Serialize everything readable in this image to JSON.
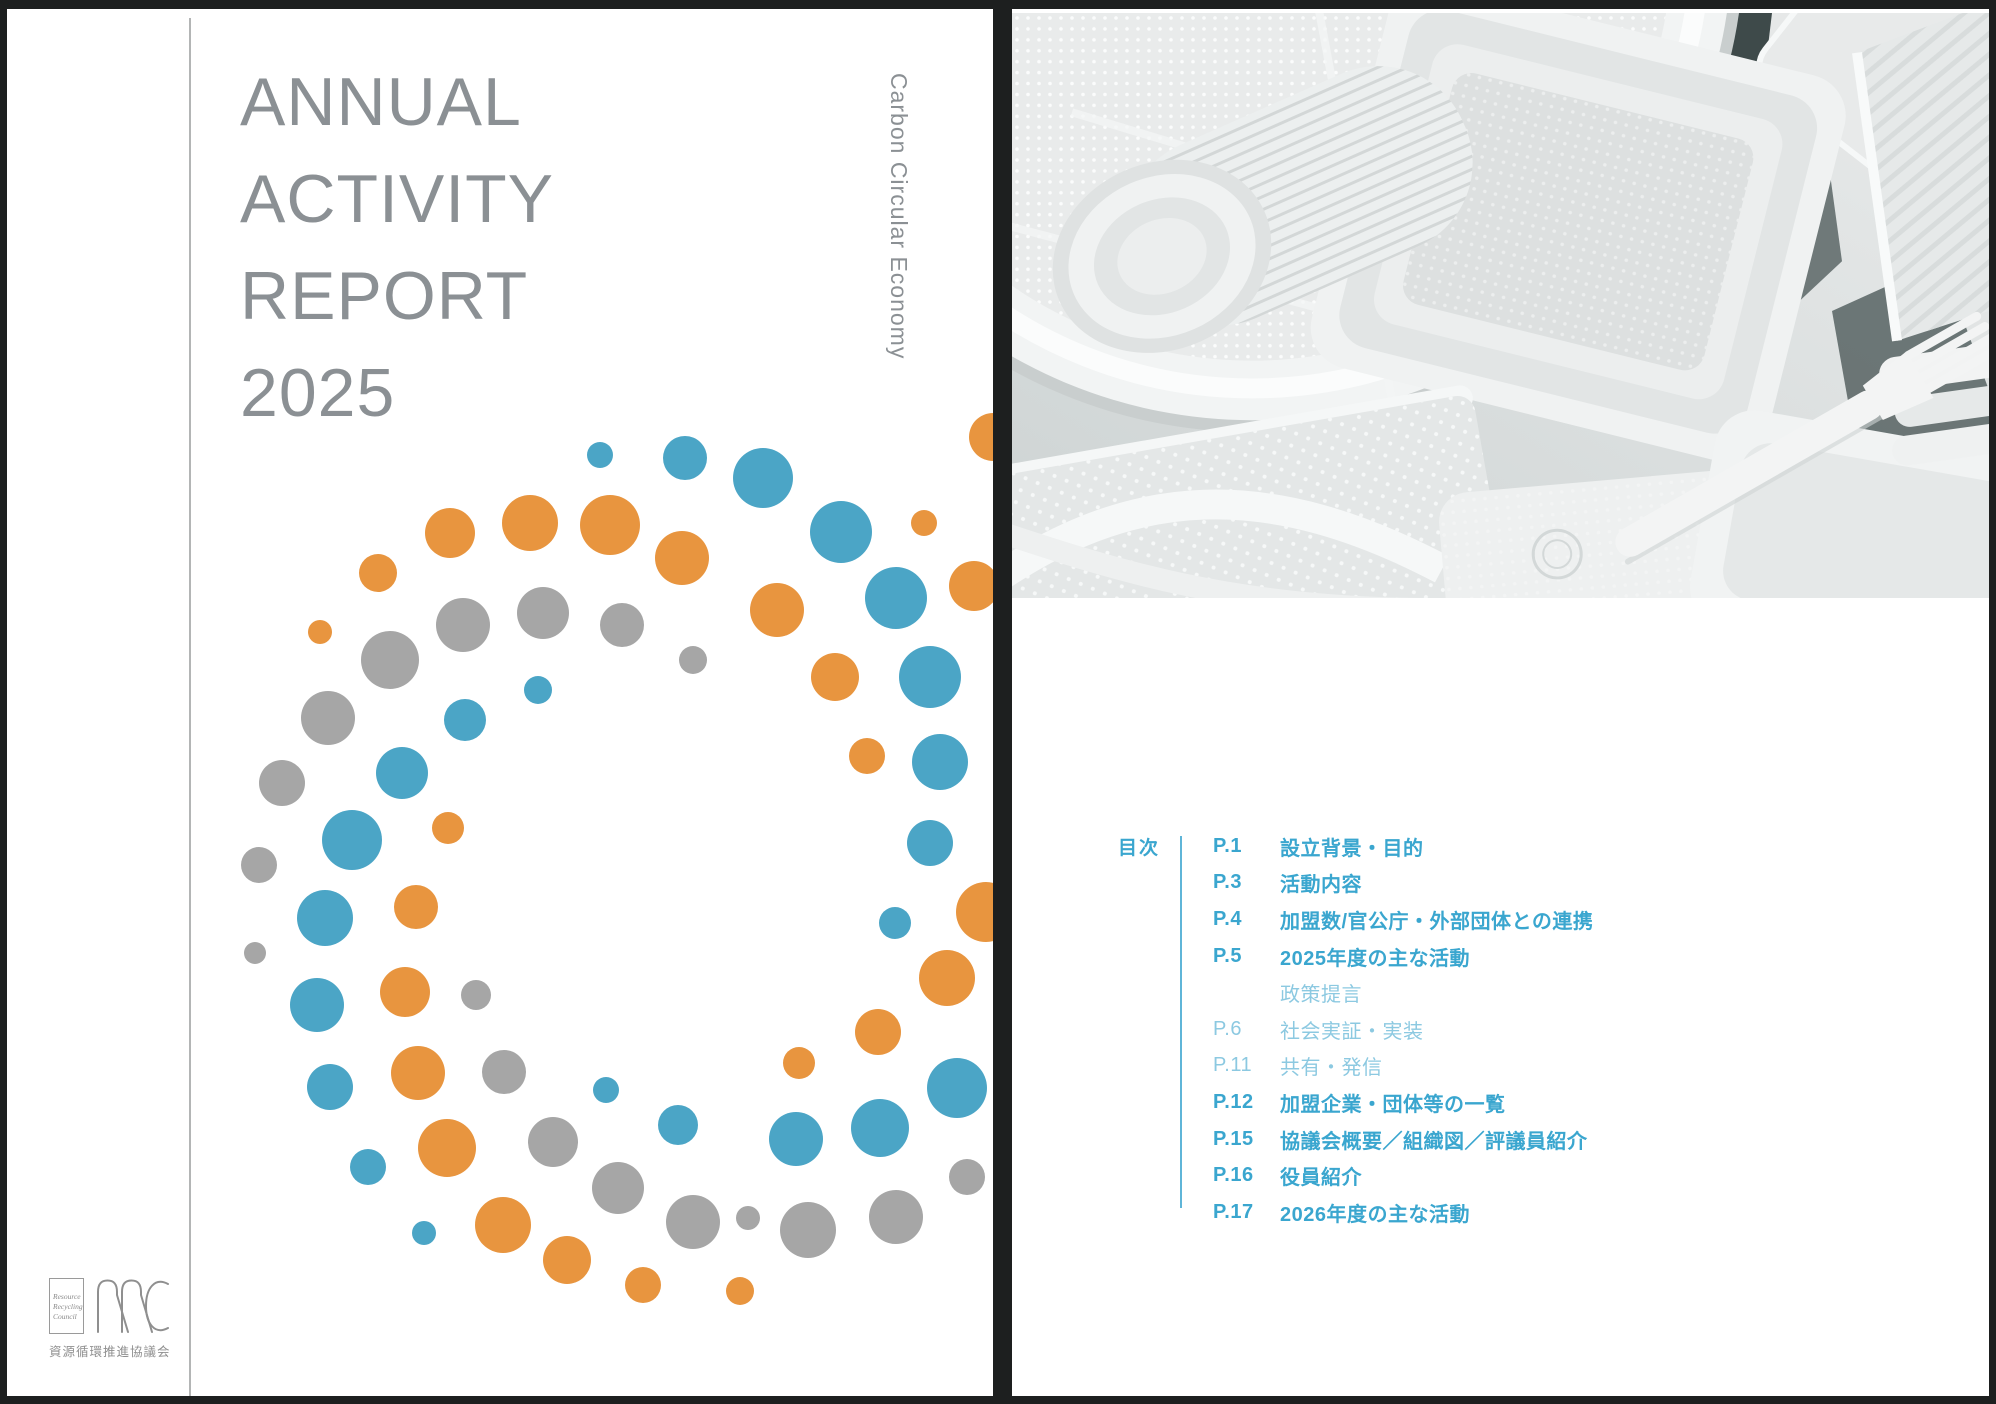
{
  "palette": {
    "dot_orange": "#E8953F",
    "dot_blue": "#4BA5C6",
    "dot_gray": "#A6A6A6",
    "title_gray": "#8B9094",
    "toc_blue": "#3AA6CF",
    "toc_blue_light": "#8CC9E1",
    "logo_gray": "#8F8F8F"
  },
  "cover": {
    "title_lines": [
      "ANNUAL",
      "ACTIVITY",
      "REPORT",
      "2025"
    ],
    "vertical_tagline": "Carbon Circular Economy"
  },
  "logo": {
    "box_lines": [
      "Resource",
      "Recycling",
      "Council"
    ],
    "acronym": "RRC",
    "org_name_ja": "資源循環推進協議会"
  },
  "toc": {
    "label": "目次",
    "items": [
      {
        "page": "P.1",
        "title": "設立背景・目的",
        "weight": "strong"
      },
      {
        "page": "P.3",
        "title": "活動内容",
        "weight": "strong"
      },
      {
        "page": "P.4",
        "title": "加盟数/官公庁・外部団体との連携",
        "weight": "strong"
      },
      {
        "page": "P.5",
        "title": "2025年度の主な活動",
        "weight": "strong"
      },
      {
        "page": "",
        "title": "政策提言",
        "weight": "light"
      },
      {
        "page": "P.6",
        "title": "社会実証・実装",
        "weight": "light"
      },
      {
        "page": "P.11",
        "title": "共有・発信",
        "weight": "light"
      },
      {
        "page": "P.12",
        "title": "加盟企業・団体等の一覧",
        "weight": "strong"
      },
      {
        "page": "P.15",
        "title": "協議会概要／組織図／評議員紹介",
        "weight": "strong"
      },
      {
        "page": "P.16",
        "title": "役員紹介",
        "weight": "strong"
      },
      {
        "page": "P.17",
        "title": "2026年度の主な活動",
        "weight": "strong"
      }
    ]
  }
}
